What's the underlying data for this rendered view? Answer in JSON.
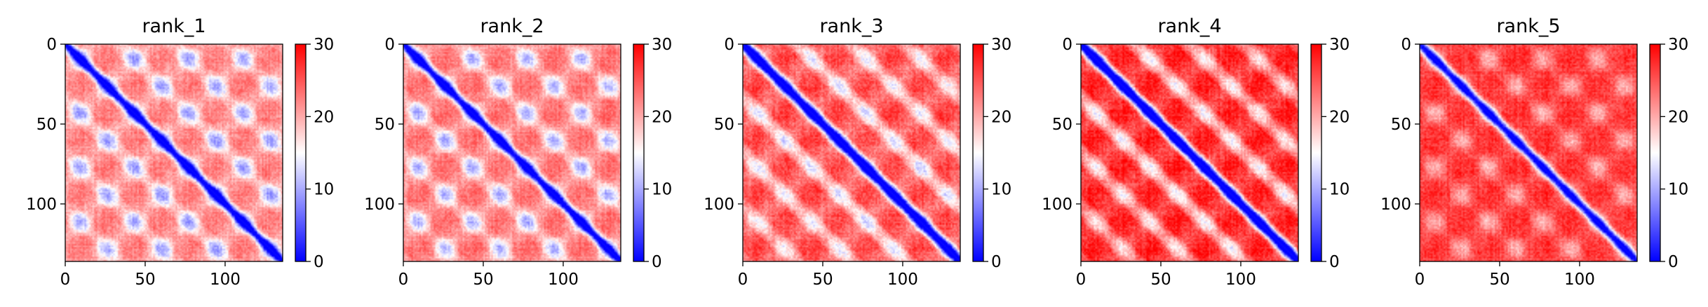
{
  "chart_data": [
    {
      "type": "heatmap",
      "title": "rank_1",
      "matrix_size": 136,
      "x_ticks": [
        0,
        50,
        100
      ],
      "y_ticks": [
        0,
        50,
        100
      ],
      "xlim": [
        0,
        136
      ],
      "ylim": [
        136,
        0
      ],
      "colorbar": {
        "range": [
          0,
          30
        ],
        "ticks": [
          0,
          10,
          20,
          30
        ],
        "colormap": "bwr"
      },
      "pattern": {
        "diag_width": 2.5,
        "period": 34,
        "band_strength": 0.55,
        "blob_strength": 0.75,
        "offset_strength": 0.35,
        "red_level": 0.72,
        "noise": 0.12
      }
    },
    {
      "type": "heatmap",
      "title": "rank_2",
      "matrix_size": 136,
      "x_ticks": [
        0,
        50,
        100
      ],
      "y_ticks": [
        0,
        50,
        100
      ],
      "xlim": [
        0,
        136
      ],
      "ylim": [
        136,
        0
      ],
      "colorbar": {
        "range": [
          0,
          30
        ],
        "ticks": [
          0,
          10,
          20,
          30
        ],
        "colormap": "bwr"
      },
      "pattern": {
        "diag_width": 2.5,
        "period": 34,
        "band_strength": 0.55,
        "blob_strength": 0.75,
        "offset_strength": 0.35,
        "red_level": 0.74,
        "noise": 0.12
      }
    },
    {
      "type": "heatmap",
      "title": "rank_3",
      "matrix_size": 136,
      "x_ticks": [
        0,
        50,
        100
      ],
      "y_ticks": [
        0,
        50,
        100
      ],
      "xlim": [
        0,
        136
      ],
      "ylim": [
        136,
        0
      ],
      "colorbar": {
        "range": [
          0,
          30
        ],
        "ticks": [
          0,
          10,
          20,
          30
        ],
        "colormap": "bwr"
      },
      "pattern": {
        "diag_width": 3.0,
        "period": 34,
        "band_strength": 0.6,
        "blob_strength": 0.3,
        "offset_strength": 0.65,
        "red_level": 0.82,
        "noise": 0.14
      }
    },
    {
      "type": "heatmap",
      "title": "rank_4",
      "matrix_size": 136,
      "x_ticks": [
        0,
        50,
        100
      ],
      "y_ticks": [
        0,
        50,
        100
      ],
      "xlim": [
        0,
        136
      ],
      "ylim": [
        136,
        0
      ],
      "colorbar": {
        "range": [
          0,
          30
        ],
        "ticks": [
          0,
          10,
          20,
          30
        ],
        "colormap": "bwr"
      },
      "pattern": {
        "diag_width": 3.0,
        "period": 34,
        "band_strength": 0.65,
        "blob_strength": 0.25,
        "offset_strength": 0.75,
        "red_level": 0.9,
        "noise": 0.14
      }
    },
    {
      "type": "heatmap",
      "title": "rank_5",
      "matrix_size": 136,
      "x_ticks": [
        0,
        50,
        100
      ],
      "y_ticks": [
        0,
        50,
        100
      ],
      "xlim": [
        0,
        136
      ],
      "ylim": [
        136,
        0
      ],
      "colorbar": {
        "range": [
          0,
          30
        ],
        "ticks": [
          0,
          10,
          20,
          30
        ],
        "colormap": "bwr"
      },
      "pattern": {
        "diag_width": 3.0,
        "period": 34,
        "band_strength": 0.3,
        "blob_strength": 0.5,
        "offset_strength": 0.15,
        "red_level": 0.88,
        "noise": 0.13
      }
    }
  ]
}
